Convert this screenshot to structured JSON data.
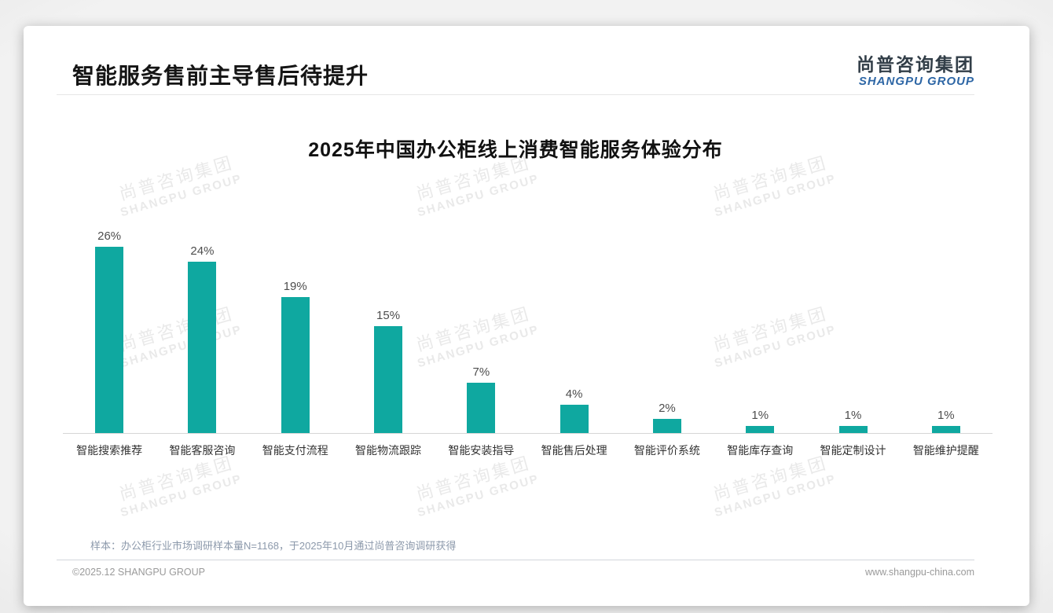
{
  "header": {
    "page_title": "智能服务售前主导售后待提升",
    "logo_cn": "尚普咨询集团",
    "logo_en": "SHANGPU GROUP"
  },
  "watermark": {
    "line1": "尚普咨询集团",
    "line2": "SHANGPU GROUP"
  },
  "chart_data": {
    "type": "bar",
    "title": "2025年中国办公柜线上消费智能服务体验分布",
    "categories": [
      "智能搜索推荐",
      "智能客服咨询",
      "智能支付流程",
      "智能物流跟踪",
      "智能安装指导",
      "智能售后处理",
      "智能评价系统",
      "智能库存查询",
      "智能定制设计",
      "智能维护提醒"
    ],
    "values": [
      26,
      24,
      19,
      15,
      7,
      4,
      2,
      1,
      1,
      1
    ],
    "value_suffix": "%",
    "xlabel": "",
    "ylabel": "",
    "ylim": [
      0,
      28
    ],
    "grid": false,
    "legend": "none",
    "bar_color": "#0fa8a0"
  },
  "footer": {
    "sample_note": "样本：办公柜行业市场调研样本量N=1168，于2025年10月通过尚普咨询调研获得",
    "copyright": "©2025.12 SHANGPU GROUP",
    "website": "www.shangpu-china.com"
  },
  "colors": {
    "bar": "#0fa8a0",
    "logo_blue": "#2d66a5",
    "note_text": "#8c99ab"
  }
}
